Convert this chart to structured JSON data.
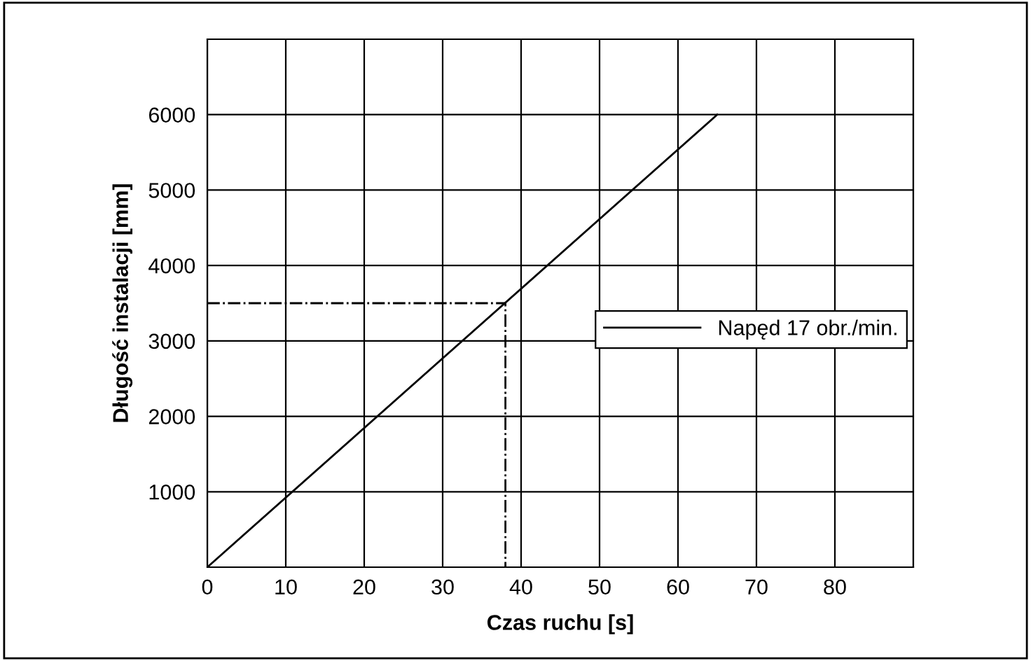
{
  "chart_data": {
    "type": "line",
    "xlabel": "Czas ruchu [s]",
    "ylabel": "Długość instalacji [mm]",
    "series": [
      {
        "name": "Napęd 17 obr./min.",
        "color": "#000000",
        "x": [
          0,
          65
        ],
        "values": [
          0,
          6000
        ],
        "line_style": "solid"
      },
      {
        "color": "#000000",
        "x": [
          0,
          38,
          38
        ],
        "values": [
          3500,
          3500,
          0
        ],
        "line_style": "dashdot"
      }
    ],
    "xlim": [
      0,
      90
    ],
    "xticks": [
      0,
      10,
      20,
      30,
      40,
      50,
      60,
      70,
      80,
      {
        "value": 90,
        "label": null
      }
    ],
    "ylim": [
      0,
      7000
    ],
    "yticks": [
      {
        "value": 0,
        "label": null
      },
      1000,
      2000,
      3000,
      4000,
      5000,
      6000,
      {
        "value": 7000,
        "label": null
      }
    ],
    "grid": true,
    "legend": "center right",
    "marker": "none"
  }
}
